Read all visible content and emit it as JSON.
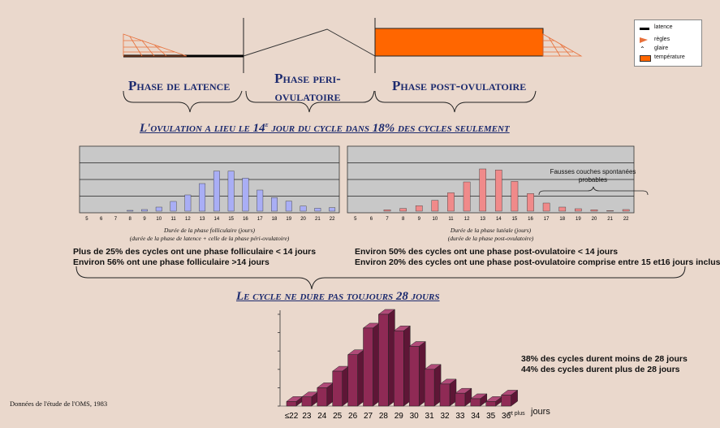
{
  "legend": {
    "items": [
      {
        "label": "latence",
        "symbol": "black-line-icon"
      },
      {
        "label": "règles",
        "symbol": "orange-hatch-icon"
      },
      {
        "label": "glaire",
        "symbol": "triangle-line-icon"
      },
      {
        "label": "température",
        "symbol": "orange-box-icon"
      }
    ]
  },
  "phases": {
    "latence": "Phase de latence",
    "peri_line1": "Phase peri-",
    "peri_line2": "ovulatoire",
    "post": "Phase post-ovulatoire"
  },
  "banner_top": {
    "before": "L'ovulation a lieu le 14",
    "sup": "e",
    "after": " jour du cycle dans 18% des cycles seulement"
  },
  "banner_mid": "Le cycle ne dure pas toujours 28 jours",
  "source": "Données de l'étude de l'OMS, 1983",
  "colors": {
    "follicular": "#a9aef5",
    "luteal": "#f08a8a",
    "cycle": "#8f2a55",
    "temperature": "#ff6600",
    "plot_bg": "#c8c8c8"
  },
  "chart_data": [
    {
      "type": "bar",
      "categories": [
        "5",
        "6",
        "7",
        "8",
        "9",
        "10",
        "11",
        "12",
        "13",
        "14",
        "15",
        "16",
        "17",
        "18",
        "19",
        "20",
        "21",
        "22"
      ],
      "values": [
        0,
        0,
        0,
        0.3,
        0.6,
        1.5,
        3.6,
        6.0,
        10.2,
        14.8,
        14.8,
        12.2,
        7.8,
        5.0,
        3.7,
        1.9,
        1.1,
        1.3
      ],
      "ylim": [
        0,
        24
      ],
      "grid": true,
      "caption_line1": "Durée de la phase folliculaire (jours)",
      "caption_line2": "(durée de la phase de latence + celle de la phase péri-ovulatoire)",
      "stats": [
        "Plus de 25% des cycles ont une phase folliculaire < 14 jours",
        "Environ 56% ont une phase folliculaire >14 jours"
      ]
    },
    {
      "type": "bar",
      "categories": [
        "5",
        "6",
        "7",
        "8",
        "9",
        "10",
        "11",
        "12",
        "13",
        "14",
        "15",
        "16",
        "17",
        "18",
        "19",
        "20",
        "21",
        "22"
      ],
      "values": [
        0,
        0,
        0.5,
        1.0,
        2.0,
        4.0,
        6.8,
        10.8,
        15.6,
        15.2,
        11.0,
        6.5,
        3.0,
        1.5,
        0.9,
        0.5,
        0.2,
        0.6
      ],
      "ylim": [
        0,
        24
      ],
      "grid": true,
      "annotation": "Fausses couches spontanées probables",
      "caption_line1": "Durée de la phase lutéale (jours)",
      "caption_line2": "(durée de la phase post-ovulatoire)",
      "stats": [
        "Environ 50% des cycles ont une phase post-ovulatoire < 14 jours",
        "Environ 20% des cycles ont une phase post-ovulatoire comprise entre 15 et16 jours inclus"
      ]
    },
    {
      "type": "bar",
      "categories": [
        "≤22",
        "23",
        "24",
        "25",
        "26",
        "27",
        "28",
        "29",
        "30",
        "31",
        "32",
        "33",
        "34",
        "35",
        "36"
      ],
      "values": [
        0.5,
        1.0,
        2.0,
        3.8,
        5.6,
        8.5,
        10.0,
        8.2,
        6.5,
        4.0,
        2.4,
        1.4,
        0.8,
        0.5,
        1.2
      ],
      "ylim": [
        0,
        10
      ],
      "x_suffix_small": "et plus",
      "x_suffix": "jours",
      "stats": [
        "38% des cycles durent moins de 28 jours",
        "44% des cycles durent plus de 28 jours"
      ]
    }
  ]
}
